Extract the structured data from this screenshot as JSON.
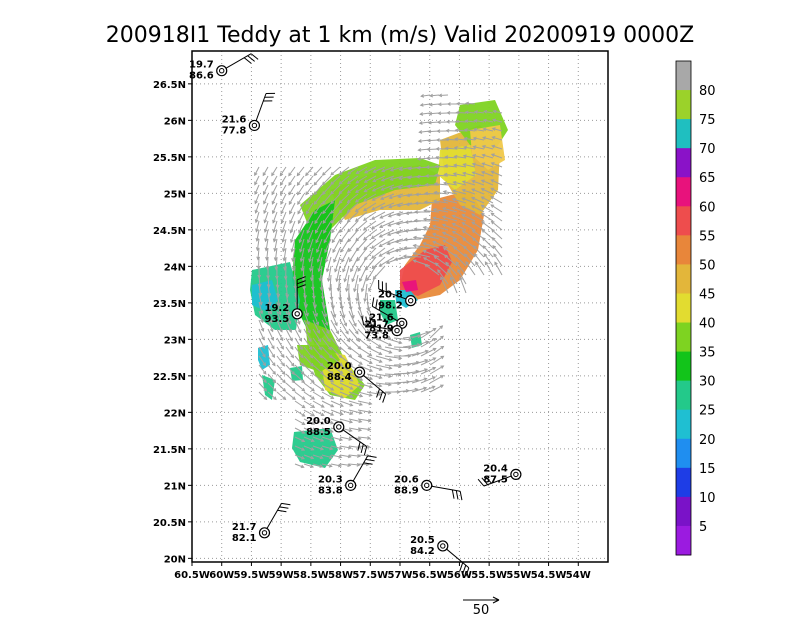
{
  "chart_data": {
    "type": "scatter",
    "title": "200918I1 Teddy at 1 km (m/s) Valid 20200919 0000Z",
    "x_ticks": [
      "60.5W",
      "60W",
      "59.5W",
      "59W",
      "58.5W",
      "58W",
      "57.5W",
      "57W",
      "56.5W",
      "56W",
      "55.5W",
      "55W",
      "54.5W",
      "54W"
    ],
    "y_ticks": [
      "20N",
      "20.5N",
      "21N",
      "21.5N",
      "22N",
      "22.5N",
      "23N",
      "23.5N",
      "24N",
      "24.5N",
      "25N",
      "25.5N",
      "26N",
      "26.5N"
    ],
    "xlim": [
      -60.5,
      -53.5
    ],
    "ylim": [
      19.95,
      26.95
    ],
    "grid": true,
    "colorbar": {
      "labels": [
        "5",
        "10",
        "15",
        "20",
        "25",
        "30",
        "35",
        "40",
        "45",
        "50",
        "55",
        "60",
        "65",
        "70",
        "75",
        "80"
      ],
      "colors": [
        "#9b1be0",
        "#7a12c8",
        "#1e3de6",
        "#1f8ef0",
        "#1fbfd2",
        "#23c98a",
        "#12c41a",
        "#7ed321",
        "#e2dc30",
        "#e3b63a",
        "#e8863a",
        "#ee4d4d",
        "#e8127c",
        "#8a12c8",
        "#1fbfc0",
        "#9bd22a",
        "#a8a8a8"
      ]
    },
    "arrow_scale_label": "50",
    "observations": [
      {
        "wind": "19.7",
        "pressure": "86.6",
        "lon": -60.0,
        "lat": 26.68
      },
      {
        "wind": "21.6",
        "pressure": "77.8",
        "lon": -59.45,
        "lat": 25.93
      },
      {
        "wind": "19.2",
        "pressure": "93.5",
        "lon": -58.73,
        "lat": 23.35
      },
      {
        "wind": "20.8",
        "pressure": "98.2",
        "lon": -56.82,
        "lat": 23.53
      },
      {
        "wind": "21.6",
        "pressure": "81.9",
        "lon": -56.97,
        "lat": 23.22
      },
      {
        "wind": "21.7",
        "pressure": "73.8",
        "lon": -57.05,
        "lat": 23.12
      },
      {
        "wind": "20.0",
        "pressure": "88.4",
        "lon": -57.68,
        "lat": 22.55
      },
      {
        "wind": "20.0",
        "pressure": "88.5",
        "lon": -58.03,
        "lat": 21.8
      },
      {
        "wind": "20.3",
        "pressure": "83.8",
        "lon": -57.83,
        "lat": 21.0
      },
      {
        "wind": "20.6",
        "pressure": "88.9",
        "lon": -56.55,
        "lat": 21.0
      },
      {
        "wind": "20.4",
        "pressure": "87.5",
        "lon": -55.05,
        "lat": 21.15
      },
      {
        "wind": "21.7",
        "pressure": "82.1",
        "lon": -59.28,
        "lat": 20.35
      },
      {
        "wind": "20.5",
        "pressure": "84.2",
        "lon": -56.28,
        "lat": 20.17
      }
    ]
  }
}
